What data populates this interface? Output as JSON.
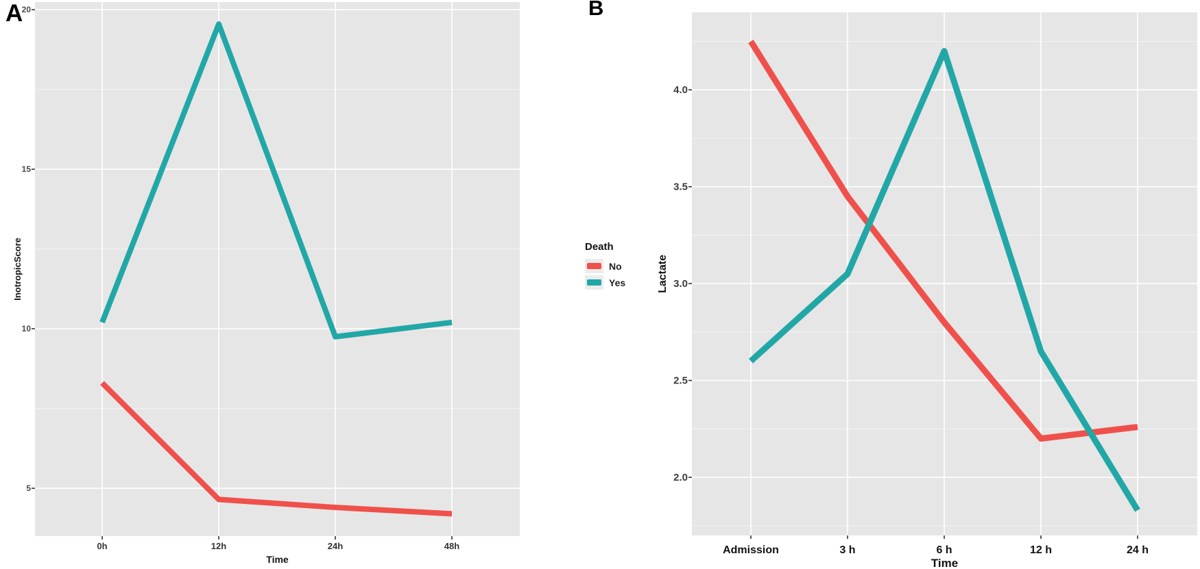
{
  "labels": {
    "panel_a": "A",
    "panel_b": "B"
  },
  "legend": {
    "title": "Death",
    "position": "center-between-panels",
    "items": [
      {
        "label": "No",
        "color": "#F0504B"
      },
      {
        "label": "Yes",
        "color": "#22A7A7"
      }
    ]
  },
  "colors": {
    "panel_bg": "#E6E6E6",
    "grid_major": "#FFFFFF",
    "tick_mark": "#333333",
    "red": "#F0504B",
    "teal": "#22A7A7"
  },
  "chart_data": [
    {
      "type": "line",
      "panel": "A",
      "title": "",
      "xlabel": "Time",
      "ylabel": "InotropicScore",
      "categories": [
        "0h",
        "12h",
        "24h",
        "48h"
      ],
      "yticks": [
        {
          "v": 5,
          "label": "5"
        },
        {
          "v": 10,
          "label": "10"
        },
        {
          "v": 15,
          "label": "15"
        },
        {
          "v": 20,
          "label": "20"
        }
      ],
      "ylim": [
        3.5,
        20.24
      ],
      "grid": true,
      "series": [
        {
          "name": "No",
          "color": "#F0504B",
          "values": [
            8.3,
            4.65,
            4.4,
            4.2
          ]
        },
        {
          "name": "Yes",
          "color": "#22A7A7",
          "values": [
            10.2,
            19.55,
            9.75,
            10.2
          ]
        }
      ]
    },
    {
      "type": "line",
      "panel": "B",
      "title": "",
      "xlabel": "Time",
      "ylabel": "Lactate",
      "categories": [
        "Admission",
        "3 h",
        "6 h",
        "12 h",
        "24 h"
      ],
      "yticks": [
        {
          "v": 2,
          "label": "2.0"
        },
        {
          "v": 2.5,
          "label": "2.5"
        },
        {
          "v": 3,
          "label": "3.0"
        },
        {
          "v": 3.5,
          "label": "3.5"
        },
        {
          "v": 4,
          "label": "4.0"
        }
      ],
      "ylim": [
        1.7,
        4.4
      ],
      "grid": true,
      "series": [
        {
          "name": "No",
          "color": "#F0504B",
          "values": [
            4.25,
            3.45,
            2.8,
            2.2,
            2.26
          ]
        },
        {
          "name": "Yes",
          "color": "#22A7A7",
          "values": [
            2.6,
            3.05,
            4.2,
            2.65,
            1.83
          ]
        }
      ]
    }
  ]
}
